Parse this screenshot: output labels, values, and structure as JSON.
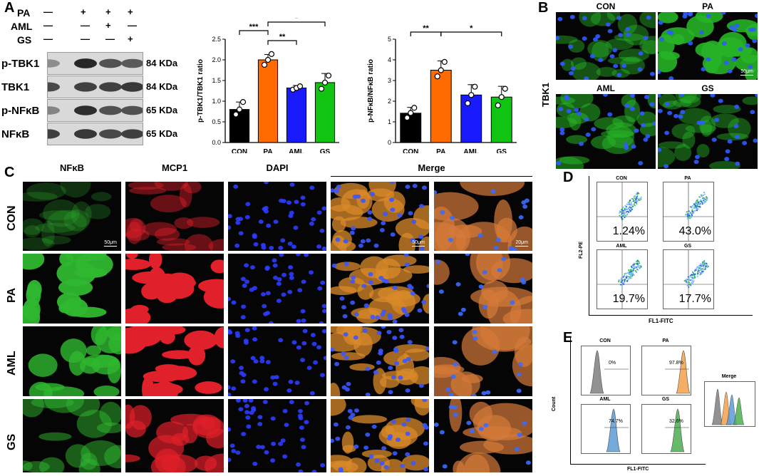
{
  "panels": {
    "A": "A",
    "B": "B",
    "C": "C",
    "D": "D",
    "E": "E"
  },
  "blot": {
    "treatments": [
      {
        "name": "PA",
        "marks": [
          "—",
          "+",
          "+",
          "+"
        ]
      },
      {
        "name": "AML",
        "marks": [
          "—",
          "—",
          "+",
          "—"
        ]
      },
      {
        "name": "GS",
        "marks": [
          "—",
          "—",
          "—",
          "+"
        ]
      }
    ],
    "bands": [
      {
        "label": "p-TBK1",
        "kda": "84 KDa"
      },
      {
        "label": "TBK1",
        "kda": "84 KDa"
      },
      {
        "label": "p-NFκB",
        "kda": "65 KDa"
      },
      {
        "label": "NFκB",
        "kda": "65 KDa"
      }
    ]
  },
  "chart_data": [
    {
      "type": "bar",
      "categories": [
        "CON",
        "PA",
        "AML",
        "GS"
      ],
      "values": [
        0.8,
        2.0,
        1.32,
        1.45
      ],
      "points": [
        [
          0.68,
          0.8,
          0.98
        ],
        [
          1.88,
          2.0,
          2.14
        ],
        [
          1.28,
          1.32,
          1.36
        ],
        [
          1.3,
          1.45,
          1.62
        ]
      ],
      "errors": [
        0.18,
        0.13,
        0.06,
        0.22
      ],
      "colors": [
        "#000000",
        "#ff6b00",
        "#1a1aff",
        "#11c411"
      ],
      "ylabel": "p-TBK1/TBK1 ratio",
      "ylim": [
        0,
        2.5
      ],
      "yticks": [
        "0.0",
        "0.5",
        "1.0",
        "1.5",
        "2.0",
        "2.5"
      ],
      "significance": [
        {
          "from": 0,
          "to": 1,
          "label": "***"
        },
        {
          "from": 1,
          "to": 2,
          "label": "**"
        },
        {
          "from": 1,
          "to": 3,
          "label": "*"
        }
      ]
    },
    {
      "type": "bar",
      "categories": [
        "CON",
        "PA",
        "AML",
        "GS"
      ],
      "values": [
        1.42,
        3.5,
        2.3,
        2.2
      ],
      "points": [
        [
          1.2,
          1.43,
          1.68
        ],
        [
          3.2,
          3.5,
          3.9
        ],
        [
          1.9,
          2.3,
          2.7
        ],
        [
          1.8,
          2.2,
          2.6
        ]
      ],
      "errors": [
        0.28,
        0.45,
        0.5,
        0.52
      ],
      "colors": [
        "#000000",
        "#ff6b00",
        "#1a1aff",
        "#11c411"
      ],
      "ylabel": "p-NFκB/NFκB ratio",
      "ylim": [
        0,
        5
      ],
      "yticks": [
        "0",
        "1",
        "2",
        "3",
        "4",
        "5"
      ],
      "significance": [
        {
          "from": 0,
          "to": 1,
          "label": "**"
        },
        {
          "from": 1,
          "to": 3,
          "label": "*"
        }
      ]
    }
  ],
  "tbk1_panel": {
    "side_label": "TBK1",
    "images": [
      {
        "title": "CON",
        "scale": ""
      },
      {
        "title": "PA",
        "scale": "50μm"
      },
      {
        "title": "AML",
        "scale": ""
      },
      {
        "title": "GS",
        "scale": ""
      }
    ]
  },
  "if_panel": {
    "columns": [
      "NFκB",
      "MCP1",
      "DAPI",
      "Merge"
    ],
    "rows": [
      "CON",
      "PA",
      "AML",
      "GS"
    ],
    "scale_50": "50μm",
    "scale_20": "20μm"
  },
  "flow_d": {
    "xlabel": "FL1-FITC",
    "ylabel": "FL2-PE",
    "plots": [
      {
        "title": "CON",
        "pct": "1.24%"
      },
      {
        "title": "PA",
        "pct": "43.0%"
      },
      {
        "title": "AML",
        "pct": "19.7%"
      },
      {
        "title": "GS",
        "pct": "17.7%"
      }
    ]
  },
  "flow_e": {
    "xlabel": "FL1-FITC",
    "ylabel": "Count",
    "merge_title": "Merge",
    "plots": [
      {
        "title": "CON",
        "pct": "0%",
        "color": "#808080"
      },
      {
        "title": "PA",
        "pct": "97.8%",
        "color": "#f5a04a"
      },
      {
        "title": "AML",
        "pct": "74.7%",
        "color": "#5b9bd5"
      },
      {
        "title": "GS",
        "pct": "32.6%",
        "color": "#4caf50"
      }
    ]
  }
}
